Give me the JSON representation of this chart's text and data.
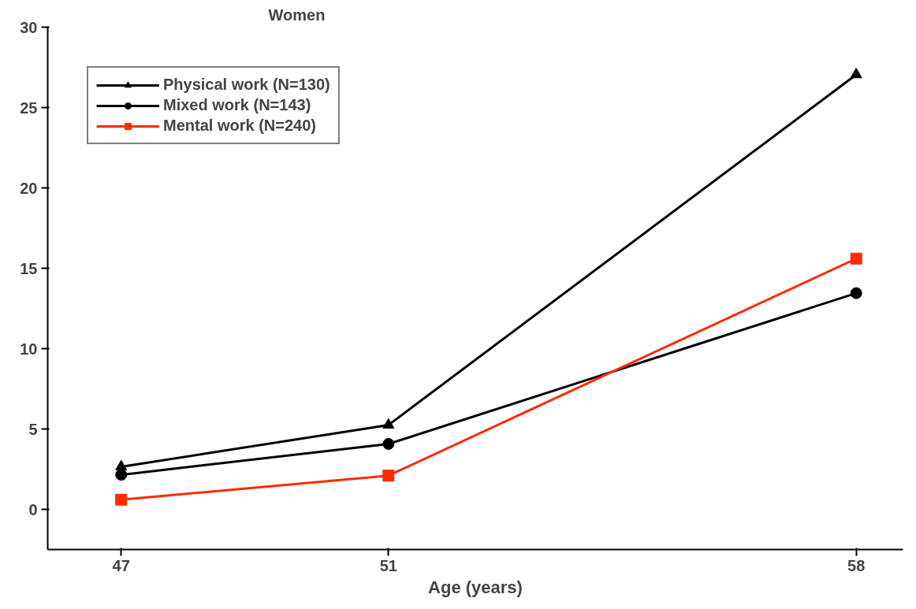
{
  "chart_data": {
    "type": "line",
    "title": "Women",
    "xlabel": "Age (years)",
    "x": [
      47,
      51,
      58
    ],
    "xlim": [
      45.9,
      58.7
    ],
    "xticks": [
      47,
      51,
      58
    ],
    "ylim": [
      -2.5,
      30
    ],
    "yticks": [
      0,
      5,
      10,
      15,
      20,
      25,
      30
    ],
    "grid": false,
    "legend": "top left",
    "line_style": "solid",
    "series": [
      {
        "name": "Physical work (N=130)",
        "color": "#000000",
        "marker": "triangle",
        "values": [
          2.65,
          5.25,
          27.05
        ]
      },
      {
        "name": "Mixed work (N=143)",
        "color": "#000000",
        "marker": "circle",
        "values": [
          2.15,
          4.07,
          13.45
        ]
      },
      {
        "name": "Mental work (N=240)",
        "color": "#ff2a00",
        "marker": "square",
        "values": [
          0.6,
          2.1,
          15.6
        ]
      }
    ]
  }
}
